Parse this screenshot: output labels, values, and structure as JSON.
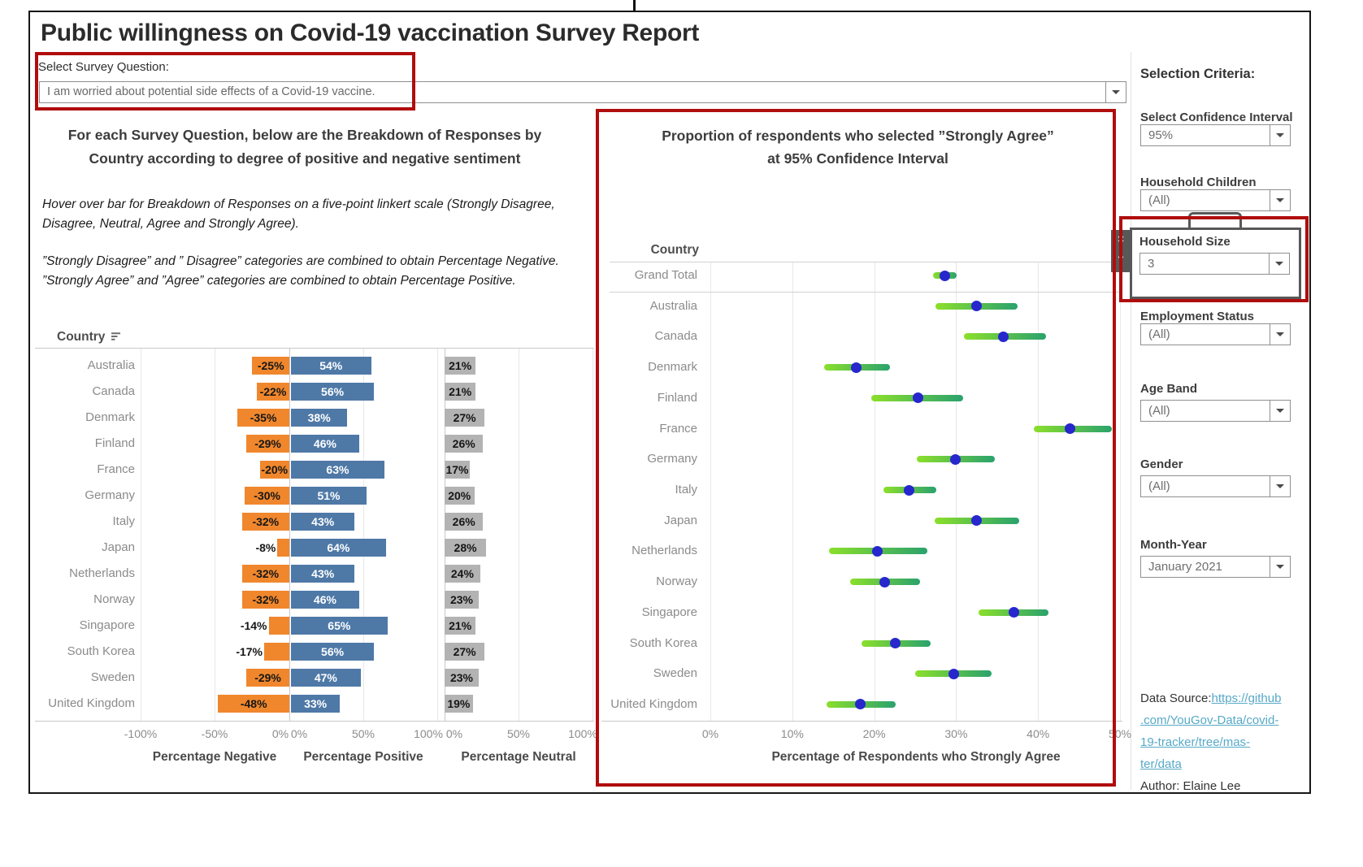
{
  "title": "Public willingness on Covid-19 vaccination Survey Report",
  "survey_filter": {
    "label": "Select Survey Question:",
    "value": "I am worried about potential side effects of a Covid-19 vaccine."
  },
  "left_panel": {
    "heading_lines": [
      "For each Survey Question, below are the Breakdown of Responses by",
      "Country according to degree of positive and negative sentiment"
    ],
    "notes": [
      "Hover over bar for Breakdown of Responses  on a five-point linkert scale (Strongly Disagree, Disagree, Neutral, Agree and Strongly Agree).",
      "”Strongly Disagree” and ” Disagree” categories are combined to obtain Percentage Negative.",
      "”Strongly Agree” and ”Agree” categories are combined to obtain Percentage Positive."
    ],
    "country_header": "Country"
  },
  "chart_data": [
    {
      "type": "bar",
      "subtype": "diverging-horizontal",
      "categories": [
        "Australia",
        "Canada",
        "Denmark",
        "Finland",
        "France",
        "Germany",
        "Italy",
        "Japan",
        "Netherlands",
        "Norway",
        "Singapore",
        "South Korea",
        "Sweden",
        "United Kingdom"
      ],
      "series": [
        {
          "name": "Percentage Negative",
          "values": [
            -25,
            -22,
            -35,
            -29,
            -20,
            -30,
            -32,
            -8,
            -32,
            -32,
            -14,
            -17,
            -29,
            -48
          ],
          "labels": [
            "-25%",
            "-22%",
            "-35%",
            "-29%",
            "-20%",
            "-30%",
            "-32%",
            "-8%",
            "-32%",
            "-32%",
            "-14%",
            "-17%",
            "-29%",
            "-48%"
          ]
        },
        {
          "name": "Percentage Positive",
          "values": [
            54,
            56,
            38,
            46,
            63,
            51,
            43,
            64,
            43,
            46,
            65,
            56,
            47,
            33
          ],
          "labels": [
            "54%",
            "56%",
            "38%",
            "46%",
            "63%",
            "51%",
            "43%",
            "64%",
            "43%",
            "46%",
            "65%",
            "56%",
            "47%",
            "33%"
          ]
        },
        {
          "name": "Percentage Neutral",
          "values": [
            21,
            21,
            27,
            26,
            17,
            20,
            26,
            28,
            24,
            23,
            21,
            27,
            23,
            19
          ],
          "labels": [
            "21%",
            "21%",
            "27%",
            "26%",
            "17%",
            "20%",
            "26%",
            "28%",
            "24%",
            "23%",
            "21%",
            "27%",
            "23%",
            "19%"
          ]
        }
      ],
      "axes": [
        {
          "title": "Percentage Negative",
          "ticks": [
            "-100%",
            "-50%",
            "0%"
          ],
          "range": [
            -100,
            0
          ]
        },
        {
          "title": "Percentage Positive",
          "ticks": [
            "0%",
            "50%",
            "100%"
          ],
          "range": [
            0,
            100
          ]
        },
        {
          "title": "Percentage Neutral",
          "ticks": [
            "0%",
            "50%",
            "100%"
          ],
          "range": [
            0,
            100
          ]
        }
      ]
    },
    {
      "type": "scatter",
      "subtype": "confidence-interval",
      "title": "Proportion of respondents who selected ”Strongly Agree” at 95% Confidence Interval",
      "title_lines": [
        "Proportion of respondents who selected ”Strongly Agree”",
        "at 95% Confidence Interval"
      ],
      "country_header": "Country",
      "categories": [
        "Grand Total",
        "Australia",
        "Canada",
        "Denmark",
        "Finland",
        "France",
        "Germany",
        "Italy",
        "Japan",
        "Netherlands",
        "Norway",
        "Singapore",
        "South Korea",
        "Sweden",
        "United Kingdom"
      ],
      "points": [
        {
          "value": 28.6,
          "low": 27.2,
          "high": 30.1
        },
        {
          "value": 32.5,
          "low": 27.5,
          "high": 37.5
        },
        {
          "value": 35.8,
          "low": 30.9,
          "high": 41.0
        },
        {
          "value": 17.8,
          "low": 13.9,
          "high": 21.9
        },
        {
          "value": 25.3,
          "low": 19.6,
          "high": 30.9
        },
        {
          "value": 43.9,
          "low": 39.5,
          "high": 49.0
        },
        {
          "value": 29.9,
          "low": 25.2,
          "high": 34.7
        },
        {
          "value": 24.3,
          "low": 21.1,
          "high": 27.6
        },
        {
          "value": 32.5,
          "low": 27.4,
          "high": 37.7
        },
        {
          "value": 20.4,
          "low": 14.5,
          "high": 26.5
        },
        {
          "value": 21.3,
          "low": 17.1,
          "high": 25.6
        },
        {
          "value": 37.0,
          "low": 32.7,
          "high": 41.3
        },
        {
          "value": 22.6,
          "low": 18.4,
          "high": 26.9
        },
        {
          "value": 29.7,
          "low": 25.0,
          "high": 34.3
        },
        {
          "value": 18.3,
          "low": 14.2,
          "high": 22.6
        }
      ],
      "x_ticks": [
        "0%",
        "10%",
        "20%",
        "30%",
        "40%",
        "50%"
      ],
      "xlim": [
        0,
        50
      ],
      "xlabel": "Percentage of Respondents who Strongly Agree",
      "grid": true
    }
  ],
  "right_panel": {
    "heading": "Selection Criteria:",
    "filters": [
      {
        "label": "Select Confidence Interval",
        "value": "95%",
        "highlighted": false
      },
      {
        "label": "Household Children",
        "value": "(All)",
        "highlighted": false
      },
      {
        "label": "Household Size",
        "value": "3",
        "highlighted": true
      },
      {
        "label": "Employment Status",
        "value": "(All)",
        "highlighted": false
      },
      {
        "label": "Age Band",
        "value": "(All)",
        "highlighted": false
      },
      {
        "label": "Gender",
        "value": "(All)",
        "highlighted": false
      },
      {
        "label": "Month-Year",
        "value": "January 2021",
        "highlighted": false
      }
    ],
    "datasource": {
      "prefix": "Data Source:",
      "link_lines": [
        "https://github",
        ".com/YouGov-Data/covid-",
        "19-tracker/tree/mas-",
        "ter/data"
      ],
      "author": "Author: Elaine Lee"
    }
  },
  "icons": {
    "close_glyph": "×",
    "caret_glyph": "▼"
  },
  "colors": {
    "negative_bar": "#f0872d",
    "positive_bar": "#4e79a7",
    "neutral_bar": "#b3b3b3",
    "ci_gradient_start": "#8bdf2b",
    "ci_gradient_end": "#2aa26d",
    "ci_dot": "#2727cd",
    "highlight_box": "#b00d0d",
    "link": "#56a9c7"
  }
}
